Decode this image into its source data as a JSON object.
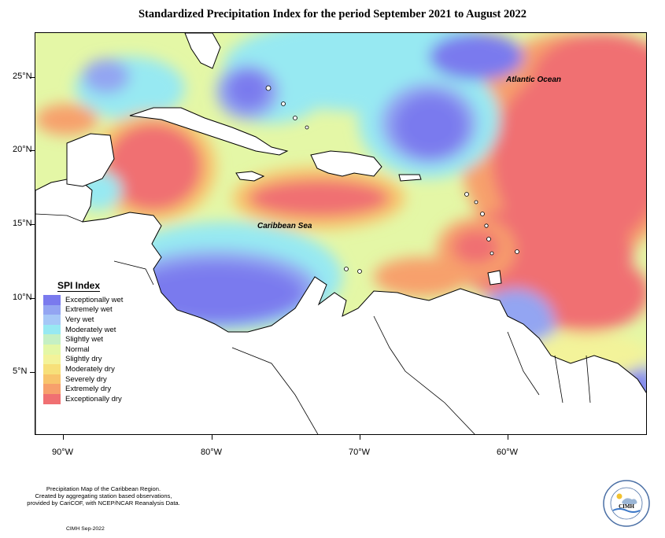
{
  "title": "Standardized Precipitation Index for the period September 2021 to August 2022",
  "axes": {
    "y_labels": [
      "25°N",
      "20°N",
      "15°N",
      "10°N",
      "5°N"
    ],
    "x_labels": [
      "90°W",
      "80°W",
      "70°W",
      "60°W"
    ]
  },
  "map_labels": {
    "atlantic": "Atlantic Ocean",
    "caribbean": "Caribbean Sea"
  },
  "legend": {
    "title": "SPI Index",
    "items": [
      {
        "label": "Exceptionally wet",
        "color": "#7a7aee"
      },
      {
        "label": "Extremely wet",
        "color": "#93a5f2"
      },
      {
        "label": "Very wet",
        "color": "#a6c8f7"
      },
      {
        "label": "Moderately wet",
        "color": "#97e9f2"
      },
      {
        "label": "Slightly wet",
        "color": "#c5f0c4"
      },
      {
        "label": "Normal",
        "color": "#e4f7a6"
      },
      {
        "label": "Slightly dry",
        "color": "#f3f39a"
      },
      {
        "label": "Moderately dry",
        "color": "#f7e07a"
      },
      {
        "label": "Severely dry",
        "color": "#f8c46c"
      },
      {
        "label": "Extremely dry",
        "color": "#f7a06c"
      },
      {
        "label": "Exceptionally dry",
        "color": "#f07072"
      }
    ]
  },
  "footer": {
    "lines": [
      "Precipitation Map of the Caribbean Region.",
      "Created by aggregating station based observations,",
      "provided by CariCOF, with NCEP/NCAR Reanalysis Data."
    ],
    "credit": "CIMH Sep-2022"
  },
  "logo": {
    "text": "CIMH"
  }
}
